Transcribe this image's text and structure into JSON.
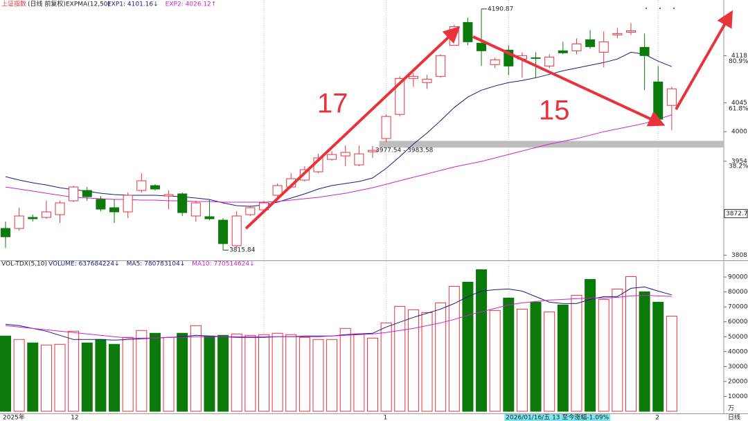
{
  "chart_data": [
    {
      "type": "candlestick",
      "title": "上证指数",
      "subtitle": "(日线 前复权)",
      "indicator": "EXPMA(12,50)",
      "categories": [
        "2025年",
        null,
        null,
        null,
        null,
        "12",
        null,
        null,
        null,
        null,
        null,
        null,
        null,
        null,
        null,
        null,
        null,
        null,
        null,
        null,
        null,
        null,
        null,
        null,
        null,
        null,
        null,
        null,
        "1",
        null,
        null,
        null,
        null,
        null,
        null,
        null,
        null,
        null,
        null,
        null,
        null,
        null,
        null,
        null,
        null,
        null,
        null,
        null,
        "2",
        null
      ],
      "ylim": [
        3801,
        4194
      ],
      "yticks": [
        3808,
        3954,
        4000,
        4045,
        4118
      ],
      "fib_labels": [
        {
          "value": 3946.3,
          "label": "38.2%"
        },
        {
          "value": 4035.5,
          "label": "61.8%"
        },
        {
          "value": 4109.7,
          "label": "80.9%"
        }
      ],
      "cursor_price": 3872.7,
      "cursor_label": "2026/01/16/五 13 至今涨幅-1.09%",
      "period_label": "日线",
      "up_color": "#e8323c",
      "down_color": "#0b7a0b",
      "candles": {
        "open": [
          3849.5,
          3849.5,
          3866.7,
          3866.7,
          3871.0,
          3892.5,
          3908.6,
          3894.7,
          3881.8,
          3875.3,
          3908.6,
          3916.2,
          3900.0,
          3903.3,
          3868.9,
          3867.8,
          3862.4,
          3822.6,
          3871.0,
          3878.5,
          3901.1,
          3914.0,
          3924.8,
          3937.7,
          3957.0,
          3962.4,
          3948.4,
          3968.8,
          3989.3,
          4026.9,
          4082.8,
          4076.3,
          4086.0,
          4134.4,
          4169.9,
          4137.6,
          4104.3,
          4126.9,
          4112.9,
          4115.0,
          4102.1,
          4125.8,
          4125.8,
          4143.0,
          4123.6,
          4150.5,
          4154.8,
          4131.2,
          4077.4,
          4040.9
        ],
        "close": [
          3836.6,
          3868.9,
          3864.6,
          3875.3,
          3889.3,
          3914.0,
          3898.9,
          3879.6,
          3875.3,
          3901.1,
          3923.7,
          3910.8,
          3902.2,
          3874.2,
          3889.3,
          3864.6,
          3825.9,
          3868.9,
          3881.8,
          3889.3,
          3916.2,
          3926.9,
          3940.9,
          3959.2,
          3964.5,
          3967.8,
          3965.6,
          3971.0,
          4023.7,
          4082.8,
          4086.0,
          4081.7,
          4118.3,
          4163.4,
          4139.8,
          4125.8,
          4111.8,
          4102.1,
          4118.3,
          4114.0,
          4116.1,
          4122.6,
          4136.5,
          4132.2,
          4139.8,
          4152.7,
          4157.0,
          4118.3,
          4019.4,
          4066.7
        ],
        "high": [
          3860.3,
          3881.8,
          3871.0,
          3892.5,
          3892.5,
          3916.2,
          3914.0,
          3900.0,
          3894.7,
          3905.4,
          3935.5,
          3918.3,
          3908.6,
          3905.4,
          3892.5,
          3894.7,
          3865.6,
          3876.4,
          3885.0,
          3892.5,
          3919.4,
          3935.5,
          3946.3,
          3965.6,
          3969.9,
          3978.5,
          3978.5,
          3977.54,
          4026.9,
          4086.0,
          4091.4,
          4088.2,
          4120.4,
          4166.6,
          4177.4,
          4190.87,
          4115.0,
          4134.4,
          4123.6,
          4123.6,
          4120.4,
          4139.8,
          4145.1,
          4158.0,
          4155.9,
          4161.3,
          4168.8,
          4152.7,
          4102.1,
          4069.9
        ],
        "low": [
          3819.4,
          3846.2,
          3860.3,
          3864.6,
          3858.1,
          3890.4,
          3892.5,
          3876.4,
          3858.1,
          3865.6,
          3905.4,
          3908.6,
          3879.6,
          3868.9,
          3860.3,
          3862.4,
          3815.84,
          3819.4,
          3868.9,
          3876.4,
          3897.9,
          3911.9,
          3922.6,
          3935.5,
          3954.9,
          3946.3,
          3946.3,
          3959.2,
          3983.58,
          4023.7,
          4069.9,
          4066.7,
          4083.9,
          4134.4,
          4134.4,
          4102.1,
          4098.9,
          4088.2,
          4083.9,
          4083.9,
          4098.9,
          4120.4,
          4120.4,
          4129.0,
          4100.0,
          4145.1,
          4150.5,
          4064.5,
          4012.9,
          4002.2
        ]
      },
      "series": [
        {
          "name": "EXP1: 4101.16↓",
          "color": "#1a1a7a",
          "values": [
            3930.1,
            3924.8,
            3920.5,
            3917.2,
            3912.9,
            3909.7,
            3907.6,
            3904.3,
            3902.2,
            3901.1,
            3901.1,
            3901.1,
            3900.0,
            3898.9,
            3896.8,
            3894.6,
            3889.3,
            3885.0,
            3883.9,
            3886.1,
            3890.4,
            3896.8,
            3903.3,
            3910.8,
            3916.2,
            3919.4,
            3922.6,
            3928.0,
            3943.0,
            3961.3,
            3980.7,
            3997.9,
            4017.2,
            4037.6,
            4053.8,
            4064.5,
            4071.0,
            4076.3,
            4079.6,
            4083.9,
            4089.2,
            4094.6,
            4098.9,
            4103.2,
            4107.5,
            4112.9,
            4123.6,
            4120.4,
            4109.7,
            4101.16
          ]
        },
        {
          "name": "EXP2: 4026.12↑",
          "color": "#d020d0",
          "values": [
            3914.0,
            3910.8,
            3907.6,
            3904.3,
            3901.1,
            3897.9,
            3896.8,
            3895.7,
            3894.7,
            3894.7,
            3893.6,
            3893.6,
            3892.5,
            3892.5,
            3891.4,
            3891.4,
            3890.4,
            3890.4,
            3890.4,
            3890.4,
            3891.4,
            3893.6,
            3895.7,
            3897.9,
            3901.1,
            3904.3,
            3908.6,
            3912.9,
            3918.3,
            3923.7,
            3929.1,
            3934.4,
            3939.8,
            3945.2,
            3949.5,
            3953.8,
            3959.2,
            3964.5,
            3969.9,
            3975.3,
            3980.7,
            3985.0,
            3989.3,
            3994.6,
            4000.0,
            4004.3,
            4008.6,
            4012.9,
            4019.4,
            4026.12
          ]
        }
      ],
      "annotations": [
        {
          "text": "17"
        },
        {
          "text": "15"
        },
        {
          "text": "3977.54 - 3983.58"
        }
      ]
    },
    {
      "type": "bar",
      "title": "VOL-TDX(5,10)",
      "unit": "万",
      "ylim": [
        0,
        97000
      ],
      "yticks": [
        10000,
        20000,
        30000,
        40000,
        50000,
        60000,
        70000,
        80000,
        90000
      ],
      "series": [
        {
          "name": "VOLUME: 637684224↓",
          "color": "#1a1a7a",
          "values": [
            50463,
            48148,
            45833,
            44444,
            44907,
            53704,
            45833,
            48148,
            44907,
            49537,
            54167,
            52315,
            49537,
            52315,
            57407,
            50463,
            50926,
            51852,
            50926,
            51389,
            52315,
            51389,
            49537,
            48148,
            48148,
            55556,
            51852,
            49074,
            59259,
            70370,
            68056,
            66204,
            72685,
            83796,
            86574,
            94907,
            67593,
            75926,
            68519,
            73148,
            66667,
            71296,
            77778,
            88426,
            75000,
            81944,
            90278,
            80093,
            73148,
            63768
          ]
        },
        {
          "name": "MA5: 780783104↓",
          "type": "line",
          "color": "#1a1a7a",
          "values": [
            58333,
            57407,
            55556,
            53704,
            50926,
            48148,
            48148,
            48148,
            47685,
            48148,
            48611,
            49074,
            49537,
            50000,
            50926,
            50463,
            50000,
            49537,
            49537,
            49537,
            50000,
            50000,
            50463,
            50463,
            50463,
            51389,
            51852,
            52315,
            56481,
            59722,
            62963,
            65741,
            68519,
            72222,
            76852,
            80556,
            81481,
            81944,
            80556,
            76852,
            73148,
            72222,
            72222,
            75000,
            76852,
            76852,
            82407,
            83333,
            80556,
            78078
          ]
        },
        {
          "name": "MA10: 770514624↓",
          "type": "line",
          "color": "#d020d0",
          "values": [
            57407,
            56481,
            55556,
            54630,
            53704,
            52778,
            51852,
            50926,
            50000,
            49074,
            49074,
            49074,
            49537,
            49537,
            50000,
            50000,
            50000,
            50000,
            50000,
            50000,
            50000,
            50000,
            50000,
            50000,
            50463,
            50926,
            51389,
            51852,
            52778,
            54167,
            55556,
            57407,
            59259,
            61574,
            64352,
            66667,
            68981,
            71296,
            72685,
            73611,
            74537,
            75000,
            75463,
            75926,
            75926,
            76389,
            77315,
            77778,
            77315,
            77051
          ]
        }
      ]
    }
  ]
}
